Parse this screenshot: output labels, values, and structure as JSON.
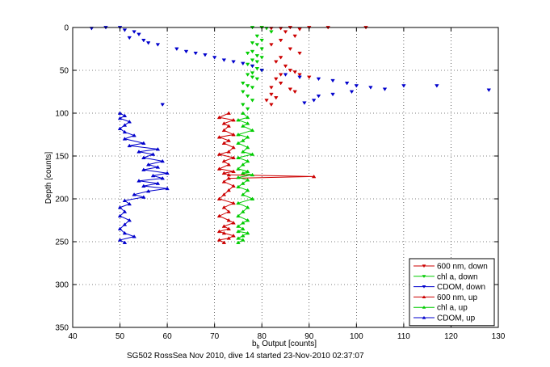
{
  "chart_data": {
    "type": "scatter",
    "xlabel_main": "b",
    "xlabel_sub": "b",
    "xlabel_rest": " Output [counts]",
    "ylabel": "Depth [counts]",
    "caption": "SG502 RossSea Nov 2010, dive 14 started 23-Nov-2010 02:37:07",
    "xlim": [
      40,
      130
    ],
    "ylim": [
      0,
      350
    ],
    "y_reversed": true,
    "grid": true,
    "legend_position": "bottom-right",
    "x_ticks": [
      "40",
      "50",
      "60",
      "70",
      "80",
      "90",
      "100",
      "110",
      "120",
      "130"
    ],
    "y_ticks": [
      "0",
      "50",
      "100",
      "150",
      "200",
      "250",
      "300",
      "350"
    ],
    "colors": {
      "red": "#cc0000",
      "green": "#00cc00",
      "blue": "#0000cc"
    },
    "series": [
      {
        "name": "600 nm, down",
        "color": "#cc0000",
        "marker": "triangle-down",
        "mode": "scatter",
        "x": [
          80,
          82,
          84,
          86,
          88,
          90,
          94,
          102,
          85,
          87,
          84,
          82,
          86,
          88,
          84,
          83,
          85,
          86,
          84,
          87,
          88,
          90,
          83,
          84,
          82,
          86,
          87,
          82,
          83,
          81,
          82
        ],
        "y": [
          0,
          1,
          1,
          0,
          2,
          0,
          0,
          0,
          5,
          10,
          15,
          20,
          25,
          30,
          35,
          40,
          45,
          50,
          55,
          52,
          55,
          58,
          60,
          65,
          70,
          72,
          75,
          78,
          82,
          85,
          90
        ]
      },
      {
        "name": "chl a, down",
        "color": "#00cc00",
        "marker": "triangle-down",
        "mode": "scatter",
        "x": [
          78,
          80,
          81,
          82,
          79,
          80,
          78,
          79,
          80,
          78,
          77,
          79,
          80,
          78,
          79,
          77,
          78,
          79,
          80,
          78,
          77,
          78,
          79,
          76,
          77,
          78,
          76,
          77,
          78,
          76,
          77
        ],
        "y": [
          0,
          0,
          1,
          5,
          10,
          15,
          18,
          20,
          25,
          28,
          30,
          33,
          35,
          38,
          40,
          43,
          45,
          48,
          50,
          53,
          55,
          58,
          60,
          65,
          68,
          70,
          75,
          80,
          85,
          90,
          95
        ]
      },
      {
        "name": "CDOM, down",
        "color": "#0000cc",
        "marker": "triangle-down",
        "mode": "scatter",
        "x": [
          44,
          47,
          50,
          51,
          53,
          54,
          52,
          55,
          56,
          58,
          62,
          64,
          66,
          68,
          70,
          72,
          74,
          76,
          78,
          80,
          85,
          88,
          92,
          95,
          98,
          100,
          103,
          106,
          110,
          117,
          128,
          92,
          95,
          99,
          91,
          89,
          59
        ],
        "y": [
          1,
          0,
          0,
          3,
          5,
          8,
          12,
          15,
          18,
          20,
          25,
          28,
          30,
          32,
          35,
          38,
          40,
          42,
          45,
          50,
          55,
          58,
          60,
          62,
          65,
          68,
          70,
          72,
          68,
          68,
          73,
          80,
          78,
          75,
          85,
          88,
          90
        ]
      },
      {
        "name": "600 nm, up",
        "color": "#cc0000",
        "marker": "triangle-up",
        "mode": "line",
        "x": [
          73,
          71,
          74,
          72,
          73,
          72,
          74,
          71,
          73,
          72,
          74,
          73,
          71,
          74,
          72,
          73,
          71,
          74,
          72,
          73,
          91,
          73,
          72,
          74,
          73,
          72,
          71,
          74,
          72,
          73,
          71,
          73,
          74,
          72,
          73,
          71,
          72,
          74,
          73,
          71,
          72
        ],
        "y": [
          100,
          105,
          108,
          112,
          115,
          120,
          125,
          128,
          132,
          135,
          140,
          145,
          148,
          152,
          156,
          160,
          165,
          168,
          170,
          172,
          174,
          176,
          180,
          185,
          190,
          195,
          200,
          205,
          210,
          215,
          220,
          225,
          228,
          232,
          235,
          238,
          240,
          243,
          246,
          248,
          251
        ]
      },
      {
        "name": "chl a, up",
        "color": "#00cc00",
        "marker": "triangle-up",
        "mode": "line",
        "x": [
          76,
          77,
          75,
          77,
          76,
          78,
          75,
          77,
          76,
          75,
          77,
          76,
          78,
          75,
          77,
          76,
          75,
          77,
          76,
          78,
          75,
          77,
          76,
          75,
          77,
          76,
          78,
          75,
          77,
          76,
          75,
          77,
          76,
          75,
          76,
          75,
          77,
          76,
          75,
          76,
          75
        ],
        "y": [
          100,
          105,
          108,
          112,
          115,
          120,
          125,
          128,
          132,
          135,
          140,
          145,
          148,
          152,
          156,
          160,
          165,
          168,
          170,
          172,
          175,
          178,
          182,
          186,
          190,
          195,
          200,
          205,
          210,
          215,
          220,
          225,
          228,
          232,
          235,
          238,
          240,
          243,
          246,
          248,
          251
        ]
      },
      {
        "name": "CDOM, up",
        "color": "#0000cc",
        "marker": "triangle-up",
        "mode": "line",
        "x": [
          50,
          51,
          50,
          52,
          51,
          50,
          51,
          53,
          51,
          55,
          52,
          58,
          54,
          57,
          55,
          59,
          56,
          58,
          55,
          60,
          57,
          59,
          54,
          58,
          55,
          60,
          56,
          53,
          55,
          51,
          52,
          50,
          51,
          50,
          52,
          51,
          50,
          51,
          53,
          50,
          51
        ],
        "y": [
          100,
          103,
          106,
          110,
          114,
          118,
          122,
          126,
          130,
          135,
          138,
          142,
          145,
          148,
          152,
          156,
          160,
          163,
          166,
          170,
          173,
          176,
          179,
          182,
          185,
          188,
          191,
          195,
          198,
          202,
          206,
          210,
          215,
          220,
          225,
          230,
          235,
          240,
          244,
          248,
          251
        ]
      }
    ]
  }
}
